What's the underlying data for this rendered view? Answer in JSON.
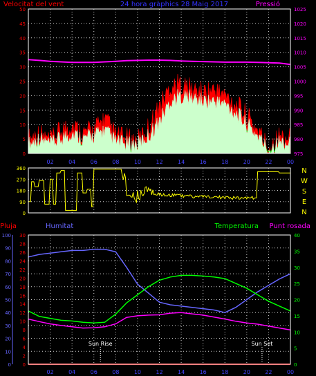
{
  "header": {
    "left_label": "Velocitat del vent",
    "center_label": "24 hora gràphics  28 Maig 2017",
    "right_label": "Pressió"
  },
  "colors": {
    "wind_gust": "#ff0000",
    "wind_avg": "#00ff00",
    "wind_speed": "#ccffcc",
    "pressure": "#ff00ff",
    "direction": "#ffff00",
    "rain": "#ff0000",
    "humidity": "#6666ff",
    "temperature": "#00ff00",
    "dew_point": "#ff00ff",
    "grid": "#d0d0d0",
    "marker": "#ffffff"
  },
  "chart_data": [
    {
      "type": "line",
      "name": "wind_pressure",
      "xlabel": "",
      "x_ticks": [
        "02",
        "04",
        "06",
        "08",
        "10",
        "12",
        "14",
        "16",
        "18",
        "20",
        "22",
        "00"
      ],
      "left_axis": {
        "label": "Velocitat del vent",
        "min": 0,
        "max": 50,
        "ticks": [
          0,
          5,
          10,
          15,
          20,
          25,
          30,
          35,
          40,
          45,
          50
        ]
      },
      "right_axis": {
        "label": "Pressió",
        "min": 975,
        "max": 1025,
        "ticks": [
          975,
          980,
          985,
          990,
          995,
          1000,
          1005,
          1010,
          1015,
          1020,
          1025
        ]
      },
      "grid": true,
      "x_hours": [
        0,
        1,
        2,
        3,
        4,
        5,
        6,
        7,
        8,
        9,
        10,
        11,
        12,
        13,
        14,
        15,
        16,
        17,
        18,
        19,
        20,
        21,
        22,
        23,
        24
      ],
      "series": [
        {
          "name": "Velocitat del vent",
          "axis": "left",
          "kind": "gust",
          "values": [
            5,
            7,
            4,
            8,
            10,
            7,
            8,
            12,
            6,
            5,
            4,
            9,
            16,
            23,
            24,
            22,
            21,
            22,
            20,
            17,
            13,
            8,
            2,
            6,
            5
          ]
        },
        {
          "name": "Velocitat del vent",
          "axis": "left",
          "kind": "average",
          "values": [
            2,
            4,
            2,
            3,
            5,
            4,
            4,
            5,
            3,
            2,
            2,
            4,
            9,
            15,
            17,
            16,
            15,
            15,
            14,
            12,
            9,
            5,
            1,
            3,
            2
          ]
        },
        {
          "name": "Velocitat del vent",
          "axis": "left",
          "kind": "speed",
          "values": [
            3,
            5,
            3,
            5,
            7,
            5,
            6,
            8,
            4,
            3,
            3,
            6,
            11,
            18,
            20,
            19,
            18,
            18,
            17,
            14,
            10,
            6,
            1,
            4,
            3
          ]
        },
        {
          "name": "Pressió",
          "axis": "right",
          "kind": "line",
          "values": [
            1007.5,
            1007.2,
            1006.9,
            1006.7,
            1006.5,
            1006.5,
            1006.5,
            1006.7,
            1006.9,
            1007.1,
            1007.2,
            1007.3,
            1007.3,
            1007.2,
            1007.0,
            1006.9,
            1006.8,
            1006.7,
            1006.6,
            1006.6,
            1006.6,
            1006.5,
            1006.4,
            1006.3,
            1005.8
          ]
        }
      ]
    },
    {
      "type": "line",
      "name": "wind_direction",
      "x_ticks": [
        "02",
        "04",
        "06",
        "08",
        "10",
        "12",
        "14",
        "16",
        "18",
        "20",
        "22",
        "00"
      ],
      "left_axis": {
        "min": 0,
        "max": 360,
        "ticks": [
          0,
          90,
          180,
          270,
          360
        ]
      },
      "right_labels": [
        "N",
        "W",
        "S",
        "E",
        "N"
      ],
      "grid": true,
      "x_hours": [
        0,
        0.3,
        0.6,
        1,
        1.5,
        2,
        2.3,
        2.6,
        3,
        3.4,
        3.8,
        4.2,
        4.5,
        5,
        5.4,
        5.8,
        6,
        6.5,
        7,
        7.5,
        8,
        8.6,
        9,
        9.5,
        10,
        10.5,
        11,
        11.5,
        12,
        13,
        14,
        15,
        16,
        17,
        18,
        19,
        20,
        20.8,
        21,
        22,
        23,
        24
      ],
      "values": [
        90,
        250,
        210,
        260,
        70,
        270,
        70,
        320,
        340,
        20,
        20,
        20,
        320,
        160,
        190,
        50,
        350,
        350,
        350,
        350,
        350,
        300,
        100,
        120,
        140,
        180,
        160,
        150,
        145,
        140,
        135,
        130,
        130,
        125,
        120,
        120,
        120,
        120,
        330,
        330,
        320,
        320
      ]
    },
    {
      "type": "line",
      "name": "temp_humidity",
      "x_ticks": [
        "02",
        "04",
        "06",
        "08",
        "10",
        "12",
        "14",
        "16",
        "18",
        "20",
        "22",
        "00"
      ],
      "headers": [
        "Pluja",
        "Humitat",
        "Temperatura",
        "Punt rosada"
      ],
      "axes": {
        "humidity": {
          "min": 0,
          "max": 100,
          "ticks": [
            0,
            10,
            20,
            30,
            40,
            50,
            60,
            70,
            80,
            90,
            100
          ]
        },
        "rain": {
          "min": 0,
          "max": 30,
          "ticks": [
            0,
            2,
            4,
            6,
            8,
            10,
            12,
            14,
            16,
            18,
            20,
            22,
            24,
            26,
            28,
            30
          ]
        },
        "temperature": {
          "min": 0,
          "max": 40,
          "ticks": [
            0,
            5,
            10,
            15,
            20,
            25,
            30,
            35,
            40
          ]
        }
      },
      "annotations": [
        {
          "label": "Sun Rise",
          "hour": 6.6
        },
        {
          "label": "Sun Set",
          "hour": 21.4
        }
      ],
      "grid": true,
      "x_hours": [
        0,
        1,
        2,
        3,
        4,
        5,
        6,
        7,
        8,
        9,
        10,
        11,
        12,
        13,
        14,
        15,
        16,
        17,
        18,
        19,
        20,
        21,
        22,
        23,
        24
      ],
      "series": [
        {
          "name": "Humitat",
          "axis": "humidity",
          "values": [
            83,
            85,
            86,
            87,
            88,
            88,
            89,
            89,
            87,
            75,
            62,
            55,
            48,
            46,
            45,
            44,
            43,
            42,
            40,
            44,
            50,
            56,
            61,
            66,
            70
          ]
        },
        {
          "name": "Temperatura",
          "axis": "temperature",
          "values": [
            16.5,
            14.8,
            14.2,
            13.6,
            13.4,
            13.0,
            12.8,
            13.0,
            15.5,
            19.0,
            21.5,
            24.0,
            26.0,
            27.0,
            27.5,
            27.5,
            27.3,
            27.0,
            26.5,
            25.0,
            23.5,
            21.5,
            19.5,
            18.0,
            16.5
          ]
        },
        {
          "name": "Punt rosada",
          "axis": "temperature",
          "values": [
            14.0,
            13.2,
            12.5,
            12.0,
            11.6,
            11.2,
            11.3,
            11.6,
            12.5,
            14.5,
            15.0,
            15.2,
            15.3,
            15.8,
            16.0,
            15.6,
            15.2,
            14.6,
            14.0,
            13.3,
            12.8,
            12.4,
            11.8,
            11.2,
            10.6
          ]
        },
        {
          "name": "Pluja",
          "axis": "rain",
          "values": [
            0,
            0,
            0,
            0,
            0,
            0,
            0,
            0,
            0,
            0,
            0,
            0,
            0,
            0,
            0,
            0,
            0,
            0,
            0,
            0,
            0,
            0,
            0,
            0,
            0
          ]
        }
      ]
    }
  ]
}
